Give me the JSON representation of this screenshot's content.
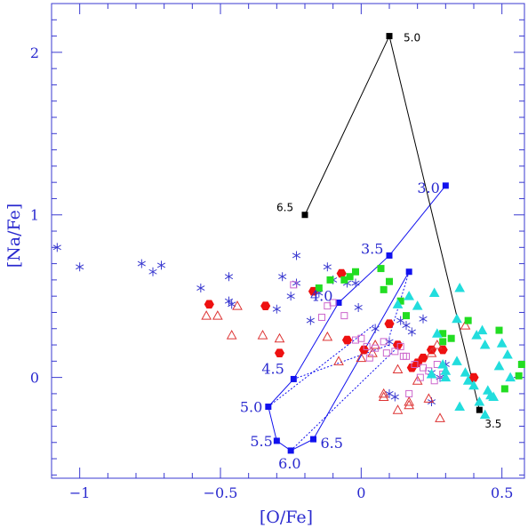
{
  "chart_data": {
    "type": "scatter",
    "title": "",
    "xlabel": "[O/Fe]",
    "ylabel": "[Na/Fe]",
    "xlim": [
      -1.1,
      0.58
    ],
    "ylim": [
      -0.62,
      2.3
    ],
    "xticks": [
      -1,
      -0.5,
      0,
      0.5
    ],
    "xtick_labels": [
      "−1",
      "−0.5",
      "0",
      "0.5"
    ],
    "yticks": [
      0,
      1,
      2
    ],
    "ytick_labels": [
      "0",
      "1",
      "2"
    ],
    "grid": false,
    "legend": "none",
    "colors": {
      "axes": "#3a3ad0",
      "stars": "#3a3ad0",
      "red": "#ee1111",
      "triangles": "#dd3333",
      "squares_open": "#cc66cc",
      "green": "#22dd22",
      "cyan": "#22dddd",
      "blue_track": "#1111ee",
      "black_track": "#000000"
    },
    "series": [
      {
        "marker": "star",
        "points": [
          [
            -1.08,
            0.8
          ],
          [
            -1.0,
            0.68
          ],
          [
            -0.78,
            0.7
          ],
          [
            -0.74,
            0.65
          ],
          [
            -0.71,
            0.69
          ],
          [
            -0.57,
            0.55
          ],
          [
            -0.47,
            0.62
          ],
          [
            -0.47,
            0.47
          ],
          [
            -0.46,
            0.45
          ],
          [
            -0.28,
            0.62
          ],
          [
            -0.25,
            0.5
          ],
          [
            -0.23,
            0.75
          ],
          [
            -0.23,
            0.58
          ],
          [
            -0.15,
            0.52
          ],
          [
            -0.12,
            0.68
          ],
          [
            -0.1,
            0.6
          ],
          [
            -0.05,
            0.58
          ],
          [
            -0.02,
            0.58
          ],
          [
            -0.01,
            0.43
          ],
          [
            -0.18,
            0.35
          ],
          [
            -0.3,
            0.42
          ],
          [
            0.05,
            0.3
          ],
          [
            0.1,
            0.22
          ],
          [
            0.14,
            0.35
          ],
          [
            0.16,
            0.32
          ],
          [
            0.18,
            0.28
          ],
          [
            0.22,
            0.36
          ],
          [
            0.1,
            -0.1
          ],
          [
            0.12,
            -0.12
          ],
          [
            0.25,
            0.03
          ],
          [
            0.28,
            0.0
          ],
          [
            0.25,
            -0.15
          ],
          [
            0.3,
            0.08
          ]
        ]
      },
      {
        "marker": "filled-hexagon",
        "points": [
          [
            -0.54,
            0.45
          ],
          [
            -0.34,
            0.44
          ],
          [
            -0.29,
            0.15
          ],
          [
            -0.17,
            0.53
          ],
          [
            -0.07,
            0.64
          ],
          [
            -0.05,
            0.23
          ],
          [
            0.01,
            0.17
          ],
          [
            0.1,
            0.33
          ],
          [
            0.13,
            0.2
          ],
          [
            0.18,
            0.06
          ],
          [
            0.2,
            0.09
          ],
          [
            0.22,
            0.12
          ],
          [
            0.25,
            0.17
          ],
          [
            0.29,
            0.17
          ],
          [
            0.4,
            0.0
          ]
        ]
      },
      {
        "marker": "open-triangle",
        "points": [
          [
            -0.55,
            0.38
          ],
          [
            -0.51,
            0.38
          ],
          [
            -0.46,
            0.26
          ],
          [
            -0.44,
            0.44
          ],
          [
            -0.35,
            0.26
          ],
          [
            -0.29,
            0.24
          ],
          [
            -0.12,
            0.25
          ],
          [
            -0.08,
            0.1
          ],
          [
            0.0,
            0.12
          ],
          [
            0.04,
            0.15
          ],
          [
            0.05,
            0.2
          ],
          [
            0.08,
            -0.1
          ],
          [
            0.08,
            -0.12
          ],
          [
            0.13,
            -0.2
          ],
          [
            0.13,
            0.05
          ],
          [
            0.17,
            -0.17
          ],
          [
            0.17,
            -0.15
          ],
          [
            0.2,
            -0.02
          ],
          [
            0.24,
            -0.13
          ],
          [
            0.27,
            0.2
          ],
          [
            0.28,
            -0.25
          ],
          [
            0.37,
            0.32
          ],
          [
            0.25,
            0.15
          ]
        ]
      },
      {
        "marker": "open-square",
        "points": [
          [
            -0.24,
            0.57
          ],
          [
            -0.14,
            0.37
          ],
          [
            -0.12,
            0.44
          ],
          [
            -0.1,
            0.46
          ],
          [
            -0.06,
            0.38
          ],
          [
            -0.02,
            0.23
          ],
          [
            0.0,
            0.24
          ],
          [
            0.02,
            0.19
          ],
          [
            0.03,
            0.12
          ],
          [
            0.05,
            0.18
          ],
          [
            0.08,
            0.22
          ],
          [
            0.09,
            0.15
          ],
          [
            0.12,
            0.16
          ],
          [
            0.14,
            0.19
          ],
          [
            0.15,
            0.13
          ],
          [
            0.16,
            0.13
          ],
          [
            0.17,
            -0.1
          ],
          [
            0.19,
            0.08
          ],
          [
            0.21,
            0.0
          ],
          [
            0.22,
            0.06
          ],
          [
            0.24,
            0.04
          ],
          [
            0.26,
            -0.02
          ],
          [
            0.27,
            0.08
          ],
          [
            0.29,
            0.02
          ]
        ]
      },
      {
        "marker": "filled-square",
        "points": [
          [
            -0.15,
            0.55
          ],
          [
            -0.11,
            0.6
          ],
          [
            -0.06,
            0.6
          ],
          [
            -0.04,
            0.62
          ],
          [
            -0.02,
            0.65
          ],
          [
            0.07,
            0.67
          ],
          [
            0.08,
            0.54
          ],
          [
            0.1,
            0.59
          ],
          [
            0.14,
            0.47
          ],
          [
            0.16,
            0.38
          ],
          [
            0.29,
            0.27
          ],
          [
            0.29,
            0.22
          ],
          [
            0.32,
            0.24
          ],
          [
            0.38,
            0.35
          ],
          [
            0.49,
            0.29
          ],
          [
            0.51,
            -0.07
          ],
          [
            0.56,
            0.01
          ],
          [
            0.57,
            0.08
          ]
        ]
      },
      {
        "marker": "filled-triangle",
        "points": [
          [
            0.13,
            0.45
          ],
          [
            0.17,
            0.5
          ],
          [
            0.2,
            0.44
          ],
          [
            0.26,
            0.52
          ],
          [
            0.27,
            0.27
          ],
          [
            0.29,
            0.08
          ],
          [
            0.3,
            0.04
          ],
          [
            0.34,
            0.1
          ],
          [
            0.34,
            0.36
          ],
          [
            0.35,
            0.55
          ],
          [
            0.37,
            0.03
          ],
          [
            0.38,
            -0.02
          ],
          [
            0.4,
            -0.05
          ],
          [
            0.41,
            0.26
          ],
          [
            0.43,
            0.29
          ],
          [
            0.44,
            0.2
          ],
          [
            0.45,
            -0.08
          ],
          [
            0.46,
            -0.11
          ],
          [
            0.49,
            0.07
          ],
          [
            0.5,
            0.21
          ],
          [
            0.52,
            0.14
          ],
          [
            0.53,
            0.0
          ],
          [
            0.42,
            -0.15
          ],
          [
            0.44,
            -0.23
          ],
          [
            0.47,
            -0.12
          ],
          [
            0.25,
            0.02
          ],
          [
            0.3,
            0.0
          ],
          [
            0.35,
            -0.18
          ]
        ]
      }
    ],
    "blue_track": {
      "points": [
        [
          0.3,
          1.18
        ],
        [
          0.1,
          0.75
        ],
        [
          -0.08,
          0.46
        ],
        [
          -0.24,
          -0.01
        ],
        [
          -0.33,
          -0.18
        ],
        [
          -0.3,
          -0.39
        ],
        [
          -0.25,
          -0.45
        ],
        [
          -0.17,
          -0.38
        ],
        [
          0.17,
          0.65
        ]
      ],
      "labels": [
        "3.0",
        "3.5",
        "4.0",
        "4.5",
        "5.0",
        "5.5",
        "6.0",
        "6.5"
      ],
      "dotted_to": [
        [
          0.05,
          0.33
        ],
        [
          0.1,
          0.2
        ],
        [
          0.15,
          0.22
        ],
        [
          0.1,
          0.25
        ]
      ]
    },
    "black_track": {
      "points": [
        [
          -0.2,
          1.0
        ],
        [
          0.1,
          2.1
        ],
        [
          0.42,
          -0.2
        ]
      ],
      "labels": [
        "6.5",
        "5.0",
        "3.5"
      ]
    }
  }
}
